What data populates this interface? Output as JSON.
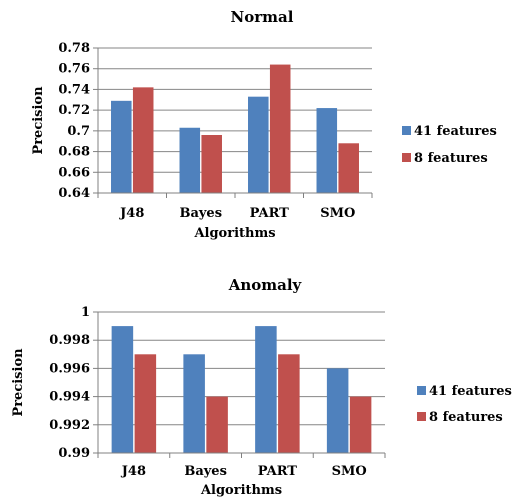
{
  "chart_data": [
    {
      "type": "bar",
      "title": "Normal",
      "xlabel": "Algorithms",
      "ylabel": "Precision",
      "categories": [
        "J48",
        "Bayes",
        "PART",
        "SMO"
      ],
      "series": [
        {
          "name": "41 features",
          "values": [
            0.729,
            0.703,
            0.733,
            0.722
          ]
        },
        {
          "name": "8 features",
          "values": [
            0.742,
            0.696,
            0.764,
            0.688
          ]
        }
      ],
      "ylim": [
        0.64,
        0.78
      ],
      "yticks": [
        "0.64",
        "0.66",
        "0.68",
        "0.7",
        "0.72",
        "0.74",
        "0.76",
        "0.78"
      ],
      "grid": true,
      "legend": "right"
    },
    {
      "type": "bar",
      "title": "Anomaly",
      "xlabel": "Algorithms",
      "ylabel": "Precision",
      "categories": [
        "J48",
        "Bayes",
        "PART",
        "SMO"
      ],
      "series": [
        {
          "name": "41 features",
          "values": [
            0.999,
            0.997,
            0.999,
            0.996
          ]
        },
        {
          "name": "8 features",
          "values": [
            0.997,
            0.994,
            0.997,
            0.994
          ]
        }
      ],
      "ylim": [
        0.99,
        1.0
      ],
      "yticks": [
        "0.99",
        "0.992",
        "0.994",
        "0.996",
        "0.998",
        "1"
      ],
      "grid": true,
      "legend": "right"
    }
  ],
  "colors": {
    "series": [
      "#4f81bd",
      "#c0504d"
    ],
    "grid": "#868686",
    "axis": "#808080"
  }
}
